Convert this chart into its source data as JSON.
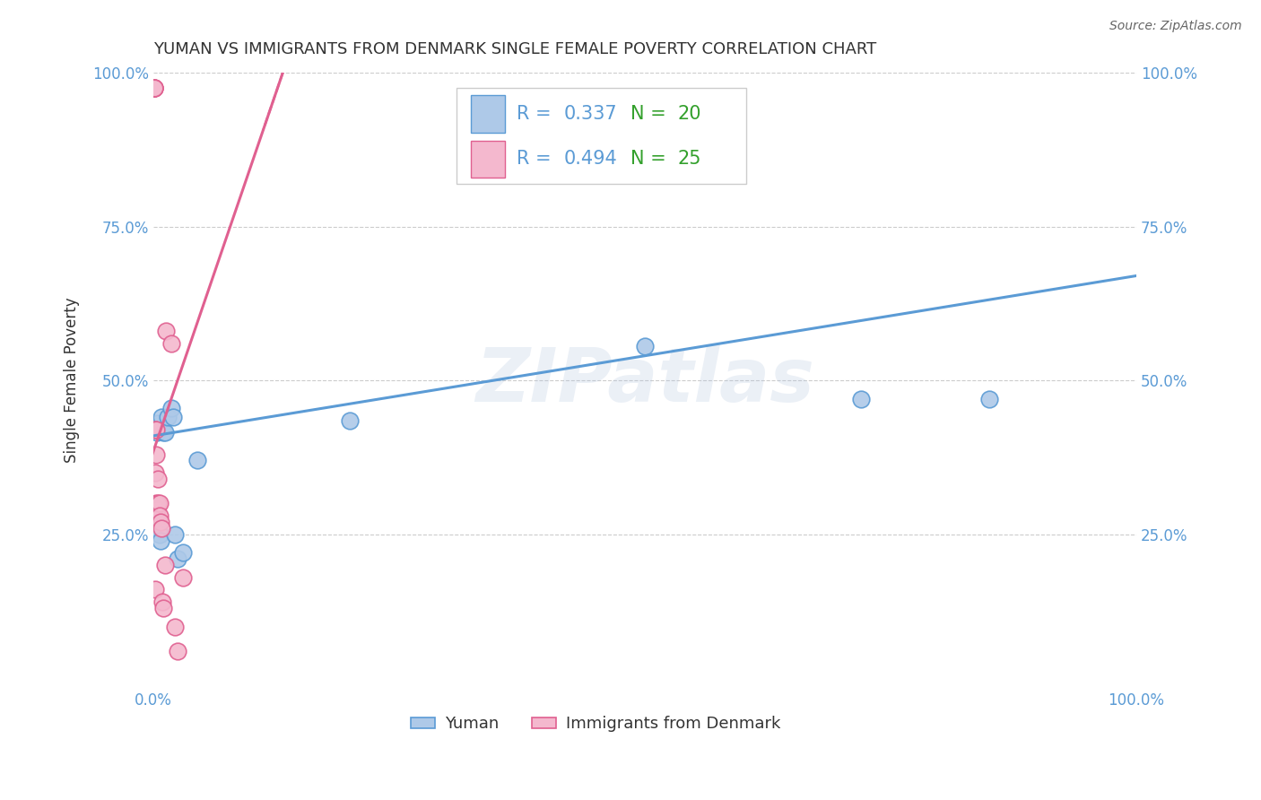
{
  "title": "YUMAN VS IMMIGRANTS FROM DENMARK SINGLE FEMALE POVERTY CORRELATION CHART",
  "source": "Source: ZipAtlas.com",
  "ylabel": "Single Female Poverty",
  "xlim": [
    0.0,
    1.0
  ],
  "ylim": [
    0.0,
    1.0
  ],
  "ytick_positions": [
    0.25,
    0.5,
    0.75,
    1.0
  ],
  "ytick_labels": [
    "25.0%",
    "50.0%",
    "75.0%",
    "100.0%"
  ],
  "background_color": "#ffffff",
  "watermark_text": "ZIPatlas",
  "blue_R": "0.337",
  "blue_N": "20",
  "pink_R": "0.494",
  "pink_N": "25",
  "blue_scatter_x": [
    0.004,
    0.005,
    0.005,
    0.005,
    0.006,
    0.007,
    0.008,
    0.01,
    0.012,
    0.015,
    0.018,
    0.02,
    0.022,
    0.025,
    0.03,
    0.045,
    0.2,
    0.5,
    0.72,
    0.85
  ],
  "blue_scatter_y": [
    0.415,
    0.43,
    0.27,
    0.26,
    0.25,
    0.24,
    0.44,
    0.415,
    0.415,
    0.44,
    0.455,
    0.44,
    0.25,
    0.21,
    0.22,
    0.37,
    0.435,
    0.555,
    0.47,
    0.47
  ],
  "pink_scatter_x": [
    0.001,
    0.001,
    0.001,
    0.001,
    0.002,
    0.002,
    0.002,
    0.003,
    0.003,
    0.003,
    0.004,
    0.005,
    0.005,
    0.006,
    0.006,
    0.007,
    0.008,
    0.009,
    0.01,
    0.012,
    0.013,
    0.018,
    0.022,
    0.025,
    0.03
  ],
  "pink_scatter_y": [
    0.975,
    0.975,
    0.975,
    0.975,
    0.42,
    0.35,
    0.16,
    0.42,
    0.38,
    0.3,
    0.29,
    0.34,
    0.3,
    0.3,
    0.28,
    0.27,
    0.26,
    0.14,
    0.13,
    0.2,
    0.58,
    0.56,
    0.1,
    0.06,
    0.18
  ],
  "blue_line_x0": 0.0,
  "blue_line_x1": 1.0,
  "blue_line_y0": 0.41,
  "blue_line_y1": 0.67,
  "pink_line_slope": 4.67,
  "pink_line_intercept": 0.385,
  "blue_color": "#5b9bd5",
  "blue_fill": "#aec9e8",
  "pink_color": "#e06090",
  "pink_fill": "#f4b8ce",
  "legend_text_color_R": "#5b9bd5",
  "legend_text_color_N": "#33a02c"
}
